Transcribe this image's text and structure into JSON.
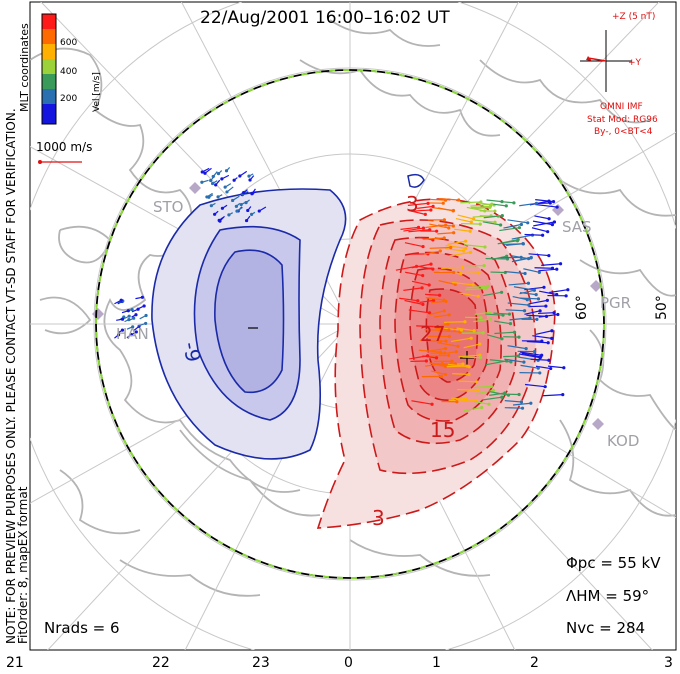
{
  "title": "22/Aug/2001 16:00–16:02 UT",
  "colorbar": {
    "label": "Vel [m/s]",
    "ticks": [
      "600",
      "400",
      "200"
    ],
    "colors": [
      "#ff1a1a",
      "#ff6a00",
      "#ffb000",
      "#9bd23a",
      "#3a9a5a",
      "#2a6fb0",
      "#1515e0"
    ]
  },
  "coord_label": "MLT coordinates",
  "notice": "NOTE: FOR PREVIEW PURPOSES ONLY. PLEASE CONTACT VT-SD STAFF FOR VERIFICATION.",
  "fit_info": "FitOrder: 8, mapEX format",
  "scale_vector": "1000 m/s",
  "imf": {
    "z_label": "+Z (5 nT)",
    "y_label": "+Y",
    "source": "OMNI IMF",
    "model": "Stat Mod: RG96",
    "condition": "By-, 0<BT<4"
  },
  "stats": {
    "phi_pc": "Φpc = 55 kV",
    "lambda_hm": "ΛHM = 59°",
    "n_vc": "Nvc = 284",
    "n_rads": "Nrads = 6"
  },
  "mlt_labels": [
    "21",
    "22",
    "23",
    "0",
    "1",
    "2",
    "3"
  ],
  "lat_labels": [
    "60°",
    "50°"
  ],
  "sites": [
    "STO",
    "HAN",
    "SAS",
    "PGR",
    "KOD"
  ],
  "contour_labels": [
    "-9",
    "3",
    "27",
    "15",
    "3"
  ],
  "colors": {
    "positive": "#e02020",
    "negative": "#1a2aa8",
    "land": "#b4b4b4",
    "grid": "#c8c8c8",
    "imf": "#e01010"
  }
}
